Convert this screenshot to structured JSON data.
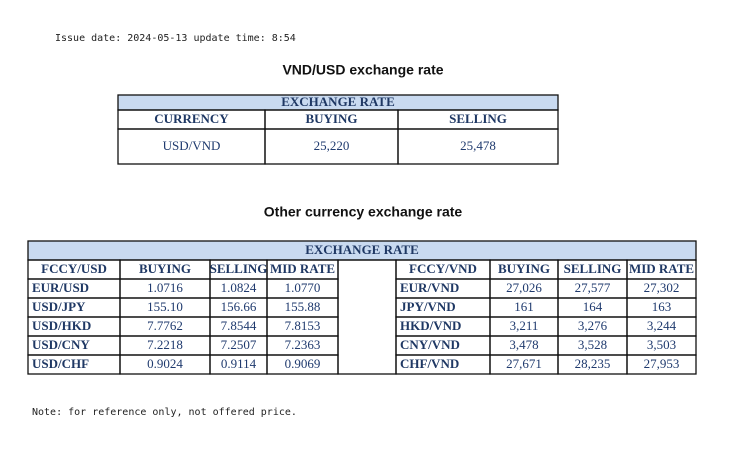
{
  "header": {
    "issue_line": "Issue date: 2024-05-13 update time: 8:54"
  },
  "vnd_usd": {
    "title": "VND/USD exchange rate",
    "banner": "EXCHANGE RATE",
    "columns": [
      "CURRENCY",
      "BUYING",
      "SELLING"
    ],
    "rows": [
      [
        "USD/VND",
        "25,220",
        "25,478"
      ]
    ]
  },
  "other": {
    "title": "Other currency exchange rate",
    "banner": "EXCHANGE  RATE",
    "left_columns": [
      "FCCY/USD",
      "BUYING",
      "SELLING",
      "MID RATE"
    ],
    "right_columns": [
      "FCCY/VND",
      "BUYING",
      "SELLING",
      "MID RATE"
    ],
    "left_rows": [
      [
        "EUR/USD",
        "1.0716",
        "1.0824",
        "1.0770"
      ],
      [
        "USD/JPY",
        "155.10",
        "156.66",
        "155.88"
      ],
      [
        "USD/HKD",
        "7.7762",
        "7.8544",
        "7.8153"
      ],
      [
        "USD/CNY",
        "7.2218",
        "7.2507",
        "7.2363"
      ],
      [
        "USD/CHF",
        "0.9024",
        "0.9114",
        "0.9069"
      ]
    ],
    "right_rows": [
      [
        "EUR/VND",
        "27,026",
        "27,577",
        "27,302"
      ],
      [
        "JPY/VND",
        "161",
        "164",
        "163"
      ],
      [
        "HKD/VND",
        "3,211",
        "3,276",
        "3,244"
      ],
      [
        "CNY/VND",
        "3,478",
        "3,528",
        "3,503"
      ],
      [
        "CHF/VND",
        "27,671",
        "28,235",
        "27,953"
      ]
    ]
  },
  "footer": {
    "note": "Note: for reference only, not offered price."
  }
}
